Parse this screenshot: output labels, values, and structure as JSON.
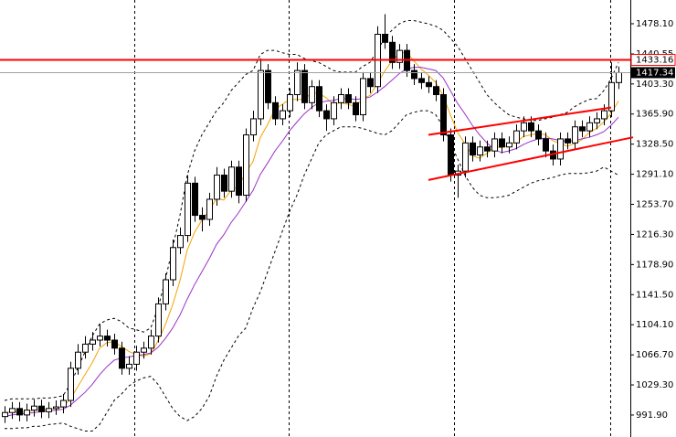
{
  "chart_data": {
    "type": "candlestick",
    "ylim": [
      964.6,
      1507.6
    ],
    "yticks": [
      {
        "value": 1478.1,
        "label": "1478.10"
      },
      1440.55,
      {
        "value": 1403.3,
        "label": "1403.30"
      },
      {
        "value": 1365.9,
        "label": "1365.90"
      },
      {
        "value": 1328.5,
        "label": "1328.50"
      },
      {
        "value": 1291.1,
        "label": "1291.10"
      },
      {
        "value": 1253.7,
        "label": "1253.70"
      },
      {
        "value": 1216.3,
        "label": "1216.30"
      },
      {
        "value": 1178.9,
        "label": "1178.90"
      },
      {
        "value": 1141.5,
        "label": "1141.50"
      },
      {
        "value": 1104.1,
        "label": "1104.10"
      },
      {
        "value": 1066.7,
        "label": "1066.70"
      },
      {
        "value": 1029.3,
        "label": "1029.30"
      },
      {
        "value": 991.9,
        "label": "991.90"
      }
    ],
    "open": [
      990,
      995,
      1000,
      992,
      998,
      1003,
      996,
      1000,
      1002,
      1010,
      1050,
      1070,
      1080,
      1085,
      1090,
      1085,
      1075,
      1050,
      1055,
      1070,
      1075,
      1090,
      1130,
      1160,
      1200,
      1215,
      1280,
      1240,
      1235,
      1260,
      1290,
      1270,
      1300,
      1265,
      1340,
      1360,
      1420,
      1380,
      1360,
      1370,
      1390,
      1420,
      1380,
      1400,
      1370,
      1360,
      1380,
      1390,
      1380,
      1365,
      1410,
      1400,
      1465,
      1455,
      1430,
      1445,
      1420,
      1410,
      1405,
      1400,
      1390,
      1340,
      1290,
      1295,
      1330,
      1315,
      1325,
      1320,
      1335,
      1325,
      1330,
      1345,
      1355,
      1345,
      1335,
      1320,
      1310,
      1335,
      1330,
      1350,
      1345,
      1355,
      1360,
      1370,
      1405
    ],
    "high": [
      1003,
      1008,
      1008,
      1006,
      1011,
      1011,
      1008,
      1010,
      1018,
      1058,
      1080,
      1090,
      1095,
      1105,
      1098,
      1093,
      1083,
      1065,
      1078,
      1083,
      1098,
      1138,
      1168,
      1210,
      1225,
      1290,
      1288,
      1250,
      1268,
      1300,
      1298,
      1308,
      1308,
      1348,
      1370,
      1435,
      1428,
      1388,
      1378,
      1398,
      1430,
      1428,
      1408,
      1408,
      1378,
      1388,
      1398,
      1398,
      1388,
      1418,
      1418,
      1475,
      1490,
      1463,
      1453,
      1453,
      1428,
      1418,
      1413,
      1408,
      1398,
      1348,
      1303,
      1338,
      1338,
      1333,
      1333,
      1343,
      1343,
      1338,
      1353,
      1363,
      1363,
      1353,
      1343,
      1328,
      1343,
      1343,
      1358,
      1358,
      1363,
      1368,
      1378,
      1430,
      1425
    ],
    "low": [
      982,
      987,
      984,
      984,
      990,
      988,
      988,
      992,
      994,
      1002,
      1042,
      1062,
      1072,
      1077,
      1077,
      1067,
      1042,
      1042,
      1047,
      1062,
      1067,
      1082,
      1122,
      1152,
      1192,
      1207,
      1232,
      1220,
      1227,
      1252,
      1262,
      1262,
      1255,
      1257,
      1332,
      1352,
      1372,
      1352,
      1352,
      1362,
      1382,
      1372,
      1372,
      1362,
      1345,
      1352,
      1372,
      1372,
      1357,
      1357,
      1392,
      1392,
      1447,
      1422,
      1422,
      1412,
      1402,
      1397,
      1392,
      1382,
      1332,
      1282,
      1262,
      1287,
      1307,
      1307,
      1312,
      1312,
      1317,
      1317,
      1322,
      1337,
      1337,
      1327,
      1312,
      1302,
      1302,
      1322,
      1322,
      1337,
      1337,
      1347,
      1352,
      1362,
      1397
    ],
    "close": [
      995,
      1000,
      992,
      998,
      1003,
      996,
      1000,
      1002,
      1010,
      1050,
      1070,
      1080,
      1085,
      1090,
      1085,
      1075,
      1050,
      1055,
      1070,
      1075,
      1090,
      1130,
      1160,
      1200,
      1215,
      1280,
      1240,
      1235,
      1260,
      1290,
      1270,
      1300,
      1265,
      1340,
      1360,
      1420,
      1380,
      1360,
      1370,
      1390,
      1420,
      1380,
      1400,
      1370,
      1360,
      1380,
      1390,
      1380,
      1365,
      1410,
      1400,
      1465,
      1455,
      1430,
      1445,
      1420,
      1410,
      1405,
      1400,
      1390,
      1340,
      1290,
      1295,
      1330,
      1315,
      1325,
      1320,
      1335,
      1325,
      1330,
      1345,
      1355,
      1345,
      1335,
      1320,
      1310,
      1335,
      1330,
      1350,
      1345,
      1355,
      1360,
      1370,
      1405,
      1417.34
    ],
    "lines": [
      {
        "color": "#f5a300",
        "dash": false,
        "values": [
          995,
          996,
          995,
          996,
          998,
          998,
          999,
          1000,
          1002,
          1012,
          1027,
          1042,
          1057,
          1075,
          1082,
          1083,
          1077,
          1071,
          1067,
          1065,
          1068,
          1084,
          1104,
          1129,
          1159,
          1197,
          1219,
          1234,
          1246,
          1261,
          1259,
          1271,
          1276,
          1293,
          1307,
          1337,
          1353,
          1372,
          1378,
          1384,
          1384,
          1384,
          1392,
          1392,
          1386,
          1378,
          1380,
          1378,
          1375,
          1385,
          1389,
          1404,
          1419,
          1432,
          1441,
          1443,
          1432,
          1422,
          1414,
          1405,
          1389,
          1365,
          1343,
          1329,
          1314,
          1311,
          1317,
          1325,
          1324,
          1327,
          1331,
          1338,
          1340,
          1342,
          1340,
          1333,
          1329,
          1326,
          1329,
          1334,
          1343,
          1348,
          1356,
          1367,
          1382
        ]
      },
      {
        "color": "#9b30c8",
        "dash": false,
        "values": [
          990,
          992,
          993,
          994,
          995,
          996,
          997,
          998,
          999,
          1004,
          1012,
          1020,
          1030,
          1042,
          1052,
          1060,
          1063,
          1064,
          1066,
          1067,
          1069,
          1076,
          1087,
          1100,
          1116,
          1136,
          1154,
          1170,
          1186,
          1204,
          1216,
          1231,
          1243,
          1257,
          1271,
          1291,
          1305,
          1320,
          1332,
          1345,
          1356,
          1366,
          1374,
          1380,
          1382,
          1383,
          1385,
          1385,
          1384,
          1385,
          1387,
          1393,
          1400,
          1408,
          1416,
          1422,
          1424,
          1424,
          1422,
          1420,
          1411,
          1395,
          1379,
          1366,
          1352,
          1340,
          1330,
          1322,
          1318,
          1320,
          1323,
          1328,
          1332,
          1335,
          1336,
          1335,
          1333,
          1332,
          1333,
          1335,
          1337,
          1340,
          1344,
          1352,
          1362
        ]
      },
      {
        "color": "#000000",
        "dash": true,
        "values": [
          1010,
          1012,
          1012,
          1012,
          1012,
          1013,
          1013,
          1014,
          1016,
          1030,
          1050,
          1070,
          1090,
          1105,
          1110,
          1112,
          1108,
          1100,
          1098,
          1095,
          1100,
          1125,
          1160,
          1200,
          1240,
          1290,
          1320,
          1340,
          1355,
          1370,
          1380,
          1395,
          1405,
          1415,
          1420,
          1440,
          1445,
          1445,
          1442,
          1440,
          1440,
          1435,
          1432,
          1430,
          1425,
          1420,
          1418,
          1418,
          1418,
          1425,
          1430,
          1445,
          1460,
          1470,
          1478,
          1482,
          1482,
          1480,
          1478,
          1475,
          1470,
          1460,
          1450,
          1435,
          1420,
          1405,
          1390,
          1380,
          1372,
          1365,
          1362,
          1360,
          1358,
          1358,
          1360,
          1362,
          1365,
          1368,
          1375,
          1380,
          1384,
          1385,
          1395,
          1410,
          1430
        ]
      },
      {
        "color": "#000000",
        "dash": true,
        "values": [
          975,
          975,
          976,
          976,
          978,
          978,
          980,
          981,
          982,
          978,
          975,
          972,
          972,
          980,
          995,
          1010,
          1018,
          1028,
          1034,
          1038,
          1040,
          1030,
          1015,
          1000,
          990,
          985,
          990,
          1000,
          1015,
          1040,
          1060,
          1075,
          1090,
          1100,
          1125,
          1145,
          1170,
          1195,
          1220,
          1245,
          1265,
          1290,
          1310,
          1330,
          1340,
          1345,
          1350,
          1350,
          1350,
          1348,
          1345,
          1342,
          1340,
          1345,
          1355,
          1365,
          1368,
          1370,
          1370,
          1365,
          1350,
          1330,
          1310,
          1290,
          1275,
          1265,
          1262,
          1262,
          1263,
          1265,
          1270,
          1275,
          1280,
          1283,
          1285,
          1287,
          1290,
          1292,
          1292,
          1292,
          1293,
          1295,
          1300,
          1295,
          1290
        ]
      }
    ],
    "trendlines": [
      {
        "color": "#ff0000",
        "x": [
          58,
          83
        ],
        "y": [
          1340,
          1374
        ]
      },
      {
        "color": "#ff0000",
        "x": [
          58,
          86
        ],
        "y": [
          1284,
          1337
        ]
      }
    ],
    "hline": {
      "value": 1433.16,
      "color": "#ff0000"
    },
    "last_price": 1417.34
  }
}
